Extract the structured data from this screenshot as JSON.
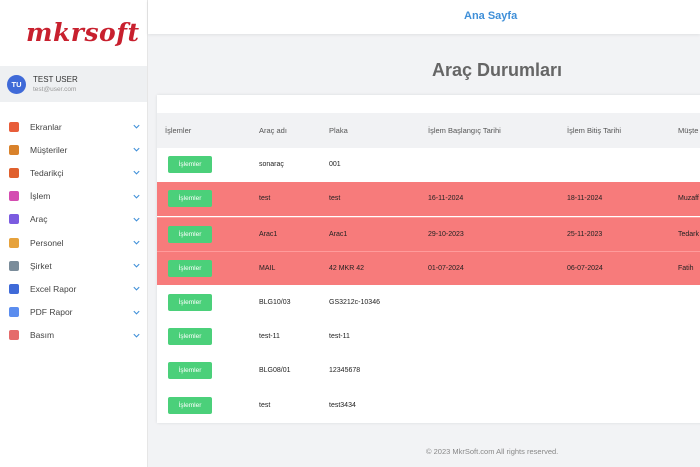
{
  "brand": {
    "logo": "mkrsoft"
  },
  "user": {
    "initials": "TU",
    "name": "TEST USER",
    "email": "test@user.com"
  },
  "sidebar": {
    "items": [
      {
        "label": "Ekranlar",
        "icon": "home-icon",
        "color": "#e85d3a"
      },
      {
        "label": "Müşteriler",
        "icon": "person-icon",
        "color": "#d9822b"
      },
      {
        "label": "Tedarikçi",
        "icon": "factory-icon",
        "color": "#e0602d"
      },
      {
        "label": "İşlem",
        "icon": "cycle-icon",
        "color": "#d44cb1"
      },
      {
        "label": "Araç",
        "icon": "truck-icon",
        "color": "#7b5be0"
      },
      {
        "label": "Personel",
        "icon": "personnel-icon",
        "color": "#e6a23c"
      },
      {
        "label": "Şirket",
        "icon": "building-icon",
        "color": "#7a8c9a"
      },
      {
        "label": "Excel Rapor",
        "icon": "excel-icon",
        "color": "#3f6ad8"
      },
      {
        "label": "PDF Rapor",
        "icon": "pdf-icon",
        "color": "#5b8def"
      },
      {
        "label": "Basım",
        "icon": "print-icon",
        "color": "#e56b6b"
      }
    ]
  },
  "topbar": {
    "title": "Ana Sayfa"
  },
  "page": {
    "title": "Araç Durumları"
  },
  "table": {
    "headers": [
      "İşlemler",
      "Araç adı",
      "Plaka",
      "İşlem Başlangıç Tarihi",
      "İşlem Bitiş Tarihi",
      "Müşte"
    ],
    "button_label": "İşlemler",
    "rows": [
      {
        "name": "sonaraç",
        "plate": "001",
        "start": "",
        "end": "",
        "customer": "",
        "highlight": false
      },
      {
        "name": "test",
        "plate": "test",
        "start": "16-11-2024",
        "end": "18-11-2024",
        "customer": "Muzaff",
        "highlight": true
      },
      {
        "name": "Arac1",
        "plate": "Arac1",
        "start": "29-10-2023",
        "end": "25-11-2023",
        "customer": "Tedark",
        "highlight": true
      },
      {
        "name": "MAIL",
        "plate": "42 MKR 42",
        "start": "01-07-2024",
        "end": "06-07-2024",
        "customer": "Fatih",
        "highlight": true
      },
      {
        "name": "BLG10/03",
        "plate": "GS3212c-10346",
        "start": "",
        "end": "",
        "customer": "",
        "highlight": false
      },
      {
        "name": "test-11",
        "plate": "test-11",
        "start": "",
        "end": "",
        "customer": "",
        "highlight": false
      },
      {
        "name": "BLG08/01",
        "plate": "12345678",
        "start": "",
        "end": "",
        "customer": "",
        "highlight": false
      },
      {
        "name": "test",
        "plate": "test3434",
        "start": "",
        "end": "",
        "customer": "",
        "highlight": false
      }
    ]
  },
  "footer": {
    "text": "© 2023 MkrSoft.com All rights reserved."
  },
  "colors": {
    "accent": "#3f8fd8",
    "highlight_row": "#f77b7b",
    "button": "#4bd07a",
    "brand": "#c8202e"
  }
}
